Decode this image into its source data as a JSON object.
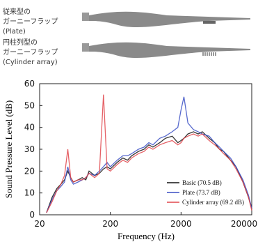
{
  "figure": {
    "labels": [
      [
        "従来型の",
        "ガーニーフラップ",
        "(Plate)"
      ],
      [
        "円柱列型の",
        "ガーニーフラップ",
        "(Cylinder array)"
      ]
    ]
  },
  "chart_data": {
    "type": "line",
    "xlabel": "Frequency (Hz)",
    "ylabel": "Sound Pressure Level (dB)",
    "xscale": "log",
    "xlim": [
      20,
      20000
    ],
    "xticks": [
      20,
      200,
      2000,
      20000
    ],
    "ylim": [
      0,
      60
    ],
    "yticks": [
      0,
      10,
      20,
      30,
      40,
      50,
      60
    ],
    "grid": false,
    "legend": "lower right",
    "x": [
      25,
      30,
      35,
      40,
      45,
      50,
      55,
      60,
      70,
      80,
      90,
      100,
      120,
      140,
      160,
      180,
      200,
      250,
      300,
      350,
      400,
      500,
      600,
      700,
      800,
      1000,
      1200,
      1500,
      1800,
      2000,
      2200,
      2500,
      3000,
      3500,
      4000,
      5000,
      6000,
      7000,
      8000,
      10000,
      12000,
      15000,
      18000,
      20000
    ],
    "series": [
      {
        "name": "Basic (70.5 dB)",
        "color": "#111111",
        "values": [
          1,
          8,
          12,
          14,
          16,
          20,
          17,
          15,
          16,
          17,
          16,
          20,
          18,
          19,
          21,
          22,
          21,
          24,
          26,
          25,
          27,
          29,
          30,
          32,
          31,
          33,
          35,
          36,
          33,
          34,
          35,
          37,
          38,
          37,
          38,
          35,
          33,
          30,
          29,
          25,
          22,
          15,
          8,
          3
        ]
      },
      {
        "name": "Plate (73.7 dB)",
        "color": "#3a4fc4",
        "values": [
          1,
          7,
          11,
          13,
          15,
          22,
          16,
          14,
          15,
          16,
          17,
          19,
          18,
          20,
          22,
          24,
          22,
          25,
          27,
          27,
          28,
          30,
          31,
          33,
          32,
          35,
          36,
          38,
          40,
          48,
          54,
          42,
          39,
          38,
          37,
          36,
          33,
          31,
          29,
          26,
          22,
          16,
          9,
          3
        ]
      },
      {
        "name": "Cylinder array (69.2 dB)",
        "color": "#e0474c",
        "values": [
          1,
          6,
          11,
          14,
          18,
          30,
          17,
          15,
          16,
          16,
          17,
          19,
          17,
          19,
          55,
          21,
          20,
          23,
          25,
          24,
          26,
          28,
          29,
          31,
          30,
          32,
          33,
          34,
          32,
          33,
          35,
          36,
          37,
          36,
          37,
          34,
          32,
          30,
          28,
          25,
          21,
          15,
          8,
          2
        ]
      }
    ]
  }
}
